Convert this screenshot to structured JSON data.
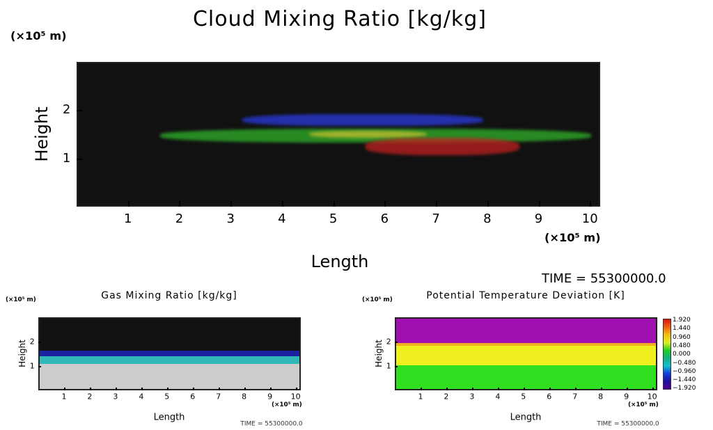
{
  "chart_data": [
    {
      "type": "heatmap",
      "title": "Cloud Mixing Ratio [kg/kg]",
      "xlabel": "Length",
      "ylabel": "Height",
      "x_unit": "(×10⁵ m)",
      "y_unit": "(×10⁵ m)",
      "xlim": [
        0,
        10.2
      ],
      "ylim": [
        0,
        3.0
      ],
      "xticks": [
        1,
        2,
        3,
        4,
        5,
        6,
        7,
        8,
        9,
        10
      ],
      "yticks": [
        1,
        2
      ],
      "time_label": "TIME = 55300000.0",
      "background": "#111111",
      "layers": [
        {
          "name": "blue cloud layer",
          "color": "#2a3adf",
          "x_range": [
            3.2,
            7.9
          ],
          "y_range": [
            1.7,
            1.95
          ]
        },
        {
          "name": "green cloud layer",
          "color": "#2fb32a",
          "x_range": [
            1.6,
            10.0
          ],
          "y_range": [
            1.35,
            1.65
          ]
        },
        {
          "name": "yellow cloud core",
          "color": "#c8c030",
          "x_range": [
            4.5,
            6.8
          ],
          "y_range": [
            1.45,
            1.6
          ]
        },
        {
          "name": "red cloud patches",
          "color": "#c02020",
          "x_range": [
            5.6,
            8.6
          ],
          "y_range": [
            1.1,
            1.45
          ]
        }
      ]
    },
    {
      "type": "heatmap",
      "title": "Gas Mixing Ratio [kg/kg]",
      "xlabel": "Length",
      "ylabel": "Height",
      "x_unit": "(×10⁵ m)",
      "y_unit": "(×10⁵ m)",
      "xlim": [
        0,
        10.2
      ],
      "ylim": [
        0,
        3.0
      ],
      "xticks": [
        1,
        2,
        3,
        4,
        5,
        6,
        7,
        8,
        9,
        10
      ],
      "yticks": [
        1,
        2
      ],
      "time_label": "TIME = 55300000.0",
      "layers": [
        {
          "name": "upper empty",
          "color": "#111111",
          "y_range": [
            1.7,
            3.0
          ]
        },
        {
          "name": "blue layer",
          "color": "#1a22a0",
          "y_range": [
            1.45,
            1.7
          ]
        },
        {
          "name": "cyan layer",
          "color": "#30b8b8",
          "y_range": [
            1.15,
            1.45
          ]
        },
        {
          "name": "lower gray",
          "color": "#cccccc",
          "y_range": [
            0,
            1.15
          ]
        }
      ]
    },
    {
      "type": "heatmap",
      "title": "Potential Temperature Deviation [K]",
      "xlabel": "Length",
      "ylabel": "Height",
      "x_unit": "(×10⁵ m)",
      "y_unit": "(×10⁵ m)",
      "xlim": [
        0,
        10.2
      ],
      "ylim": [
        0,
        3.0
      ],
      "xticks": [
        1,
        2,
        3,
        4,
        5,
        6,
        7,
        8,
        9,
        10
      ],
      "yticks": [
        1,
        2
      ],
      "time_label": "TIME = 55300000.0",
      "colorbar": {
        "labels": [
          "1.920",
          "1.440",
          "0.960",
          "0.480",
          "0.000",
          "−0.480",
          "−0.960",
          "−1.440",
          "−1.920"
        ],
        "range": [
          -1.92,
          1.92
        ]
      },
      "layers": [
        {
          "name": "upper",
          "color": "#a010b0",
          "y_range": [
            2.0,
            3.0
          ]
        },
        {
          "name": "orange band",
          "color": "#f0b020",
          "y_range": [
            1.9,
            2.0
          ]
        },
        {
          "name": "yellow",
          "color": "#f0f020",
          "y_range": [
            1.1,
            1.9
          ]
        },
        {
          "name": "green",
          "color": "#30e020",
          "y_range": [
            0,
            1.1
          ]
        }
      ]
    }
  ],
  "main_time": "TIME = 55300000.0"
}
